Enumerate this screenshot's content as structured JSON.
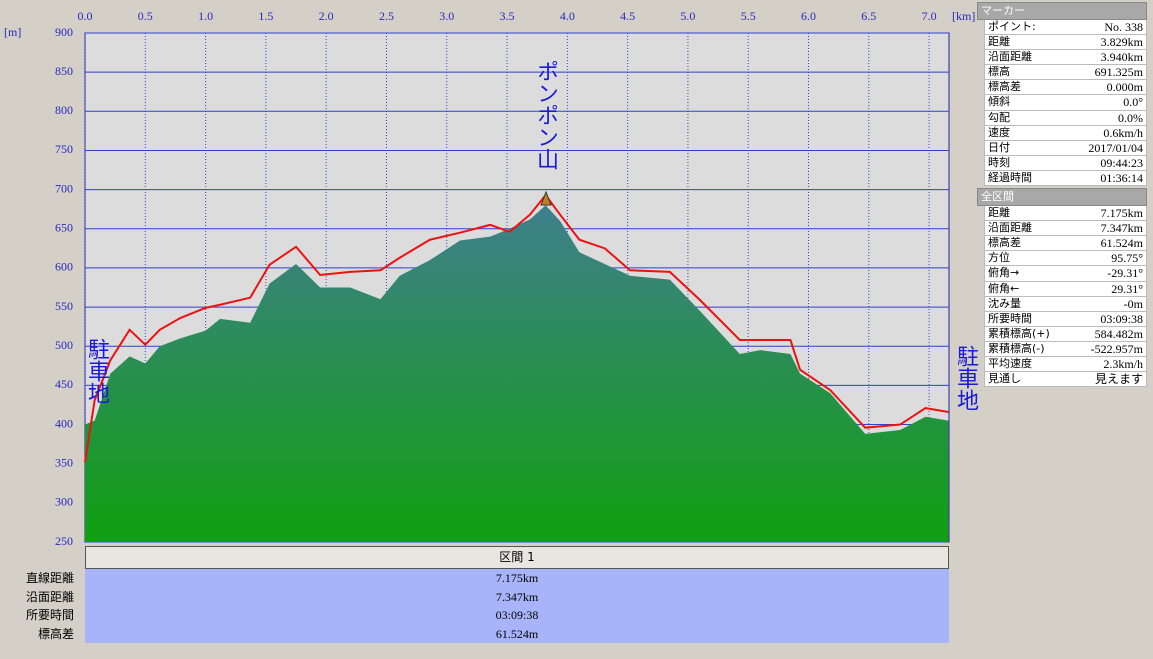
{
  "chart_data": {
    "type": "line",
    "xlabel": "[km]",
    "ylabel": "[m]",
    "xlim": [
      0,
      7.165
    ],
    "ylim": [
      250,
      900
    ],
    "xticks": [
      {
        "value": 0,
        "label": "0.0"
      },
      0.5,
      {
        "value": 1,
        "label": "1.0"
      },
      1.5,
      {
        "value": 2,
        "label": "2.0"
      },
      2.5,
      {
        "value": 3,
        "label": "3.0"
      },
      3.5,
      {
        "value": 4,
        "label": "4.0"
      },
      4.5,
      {
        "value": 5,
        "label": "5.0"
      },
      5.5,
      {
        "value": 6,
        "label": "6.0"
      },
      6.5,
      {
        "value": 7,
        "label": "7.0"
      }
    ],
    "yticks": [
      250,
      300,
      350,
      400,
      450,
      500,
      550,
      600,
      650,
      700,
      750,
      800,
      850,
      900
    ],
    "grid": true,
    "x": [
      0,
      0.08,
      0.21,
      0.37,
      0.5,
      0.62,
      0.79,
      1.0,
      1.12,
      1.37,
      1.53,
      1.75,
      1.95,
      2.2,
      2.45,
      2.61,
      2.86,
      3.11,
      3.36,
      3.52,
      3.69,
      3.82,
      3.94,
      4.1,
      4.31,
      4.52,
      4.85,
      5.1,
      5.43,
      5.6,
      5.85,
      5.93,
      6.18,
      6.47,
      6.76,
      6.97,
      7.16
    ],
    "series": [
      {
        "color": "#10a010",
        "top_color": "#3f7f8c",
        "fill": true,
        "values": [
          400,
          405,
          465,
          487,
          478,
          500,
          510,
          520,
          535,
          530,
          580,
          605,
          575,
          575,
          560,
          590,
          610,
          635,
          640,
          650,
          662,
          680,
          660,
          620,
          605,
          590,
          585,
          545,
          490,
          495,
          490,
          465,
          440,
          388,
          393,
          410,
          405
        ]
      },
      {
        "color": "#ee1111",
        "fill": false,
        "values": [
          352,
          431,
          482,
          521,
          502,
          521,
          536,
          549,
          553,
          562,
          604,
          627,
          591,
          595,
          597,
          613,
          636,
          645,
          655,
          646,
          668,
          693,
          668,
          636,
          625,
          597,
          595,
          559,
          508,
          508,
          508,
          470,
          444,
          396,
          400,
          421,
          416
        ]
      }
    ],
    "annotations": [
      "ポンポン山",
      "駐車地",
      "駐車地"
    ]
  },
  "panel": {
    "marker": {
      "title": "マーカー",
      "rows": [
        [
          "ポイント:",
          "No. 338"
        ],
        [
          "距離",
          "3.829km"
        ],
        [
          "沿面距離",
          "3.940km"
        ],
        [
          "標高",
          "691.325m"
        ],
        [
          "標高差",
          "0.000m"
        ],
        [
          "傾斜",
          "0.0°"
        ],
        [
          "勾配",
          "0.0%"
        ],
        [
          "速度",
          "0.6km/h"
        ],
        [
          "日付",
          "2017/01/04"
        ],
        [
          "時刻",
          "09:44:23"
        ],
        [
          "経過時間",
          "01:36:14"
        ]
      ]
    },
    "total": {
      "title": "全区間",
      "rows": [
        [
          "距離",
          "7.175km"
        ],
        [
          "沿面距離",
          "7.347km"
        ],
        [
          "標高差",
          "61.524m"
        ],
        [
          "方位",
          "95.75°"
        ],
        [
          "俯角→",
          "-29.31°"
        ],
        [
          "俯角←",
          "29.31°"
        ],
        [
          "沈み量",
          "-0m"
        ],
        [
          "所要時間",
          "03:09:38"
        ],
        [
          "累積標高(+)",
          "584.482m"
        ],
        [
          "累積標高(-)",
          "-522.957m"
        ],
        [
          "平均速度",
          "2.3km/h"
        ],
        [
          "見通し",
          "見えます"
        ]
      ]
    }
  },
  "segment": {
    "header": "区間 1",
    "rows": [
      [
        "直線距離",
        "7.175km"
      ],
      [
        "沿面距離",
        "7.347km"
      ],
      [
        "所要時間",
        "03:09:38"
      ],
      [
        "標高差",
        "61.524m"
      ]
    ]
  }
}
